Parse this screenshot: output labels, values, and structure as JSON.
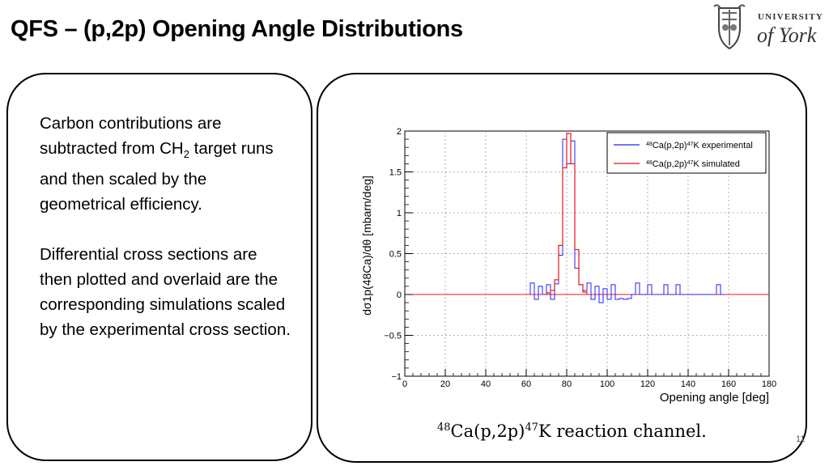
{
  "slide": {
    "title": "QFS – (p,2p) Opening Angle Distributions",
    "logo_line1": "UNIVERSITY",
    "logo_line2": "of York",
    "page_number": "11"
  },
  "text": {
    "p1_a": "Carbon contributions are subtracted from CH",
    "p1_sub": "2",
    "p1_b": " target runs and then scaled by the geometrical efficiency.",
    "p2": "Differential cross sections are then plotted and overlaid are the corresponding simulations scaled by the experimental cross section."
  },
  "caption": {
    "sup1": "48",
    "part1": "Ca(p,2p)",
    "sup2": "47",
    "part2": "K reaction channel."
  },
  "colors": {
    "experimental": "#2222ff",
    "simulated": "#e8131b",
    "grid": "#9a9a9a"
  },
  "chart_data": {
    "type": "line",
    "xlabel": "Opening angle [deg]",
    "ylabel": "dσ1p(48Ca)/dθ [mbarn/deg]",
    "xlim": [
      0,
      180
    ],
    "ylim": [
      -1,
      2
    ],
    "x_ticks": [
      "0",
      "20",
      "40",
      "60",
      "80",
      "100",
      "120",
      "140",
      "160",
      "180"
    ],
    "y_ticks": [
      "−1",
      "−0.5",
      "0",
      "0.5",
      "1",
      "1.5",
      "2"
    ],
    "grid": true,
    "legend_position": "top-right",
    "series": [
      {
        "name": "48Ca(p,2p)47K experimental",
        "name_parts": [
          "48",
          "Ca(p,2p)",
          "47",
          "K experimental"
        ],
        "style": "step",
        "bins": [
          [
            62,
            64,
            0.14
          ],
          [
            64,
            66,
            -0.06
          ],
          [
            66,
            68,
            0.1
          ],
          [
            68,
            70,
            0.0
          ],
          [
            70,
            72,
            0.12
          ],
          [
            72,
            74,
            -0.06
          ],
          [
            74,
            76,
            0.13
          ],
          [
            76,
            78,
            0.48
          ],
          [
            78,
            80,
            1.9
          ],
          [
            80,
            82,
            1.6
          ],
          [
            82,
            84,
            1.88
          ],
          [
            84,
            86,
            0.32
          ],
          [
            86,
            88,
            0.12
          ],
          [
            88,
            90,
            0.05
          ],
          [
            90,
            92,
            0.14
          ],
          [
            92,
            94,
            -0.06
          ],
          [
            94,
            96,
            0.1
          ],
          [
            96,
            98,
            -0.1
          ],
          [
            98,
            100,
            0.07
          ],
          [
            100,
            102,
            -0.06
          ],
          [
            102,
            104,
            0.12
          ],
          [
            104,
            106,
            -0.06
          ],
          [
            106,
            108,
            -0.05
          ],
          [
            108,
            110,
            -0.06
          ],
          [
            110,
            112,
            -0.05
          ],
          [
            112,
            114,
            0.0
          ],
          [
            114,
            116,
            0.14
          ],
          [
            116,
            118,
            0.0
          ],
          [
            120,
            122,
            0.12
          ],
          [
            122,
            124,
            0.0
          ],
          [
            128,
            130,
            0.12
          ],
          [
            130,
            132,
            0.0
          ],
          [
            134,
            136,
            0.12
          ],
          [
            136,
            138,
            0.0
          ],
          [
            154,
            156,
            0.12
          ],
          [
            156,
            158,
            0.0
          ]
        ]
      },
      {
        "name": "48Ca(p,2p)47K simulated",
        "name_parts": [
          "48",
          "Ca(p,2p)",
          "47",
          "K simulated"
        ],
        "style": "step",
        "bins": [
          [
            70,
            72,
            0.02
          ],
          [
            72,
            74,
            0.05
          ],
          [
            74,
            76,
            0.18
          ],
          [
            76,
            78,
            0.6
          ],
          [
            78,
            80,
            1.55
          ],
          [
            80,
            82,
            1.97
          ],
          [
            82,
            84,
            1.6
          ],
          [
            84,
            86,
            0.55
          ],
          [
            86,
            88,
            0.12
          ],
          [
            88,
            90,
            0.03
          ]
        ]
      }
    ]
  }
}
